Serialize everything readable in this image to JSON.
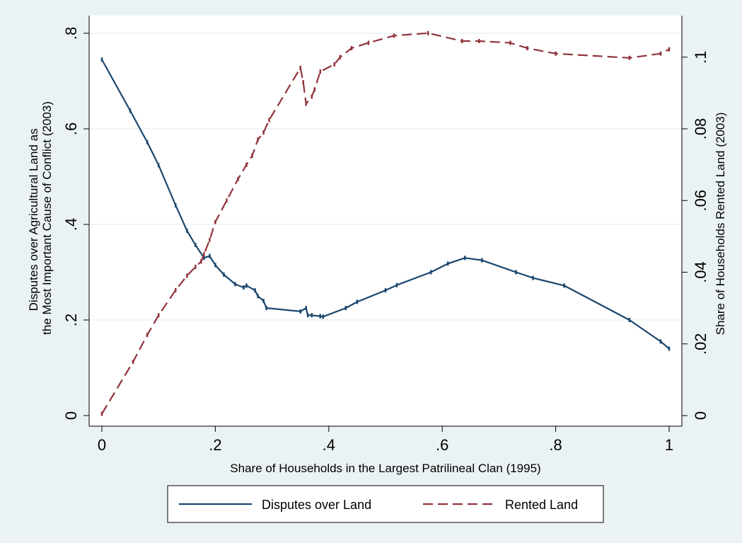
{
  "chart_data": {
    "type": "line",
    "xlabel": "Share of Households in the Largest Patrilineal Clan (1995)",
    "ylabel_left": [
      "Disputes over Agricultural Land as",
      "the Most Important Cause of Conflict (2003)"
    ],
    "ylabel_right": "Share of Households Rented Land (2003)",
    "xlim": [
      0,
      1
    ],
    "ylim_left": [
      0,
      0.8
    ],
    "ylim_right": [
      0,
      0.1066667
    ],
    "x_ticks": [
      0,
      0.2,
      0.4,
      0.6,
      0.8,
      1
    ],
    "x_tick_labels": [
      "0",
      ".2",
      ".4",
      ".6",
      ".8",
      "1"
    ],
    "y_left_ticks": [
      0,
      0.2,
      0.4,
      0.6,
      0.8
    ],
    "y_left_tick_labels": [
      "0",
      ".2",
      ".4",
      ".6",
      ".8"
    ],
    "y_right_ticks": [
      0,
      0.02,
      0.04,
      0.06,
      0.08,
      0.1
    ],
    "y_right_tick_labels": [
      "0",
      ".02",
      ".04",
      ".06",
      ".08",
      ".1"
    ],
    "grid": "horizontal",
    "legend_position": "bottom",
    "series": [
      {
        "name": "Disputes over Land",
        "axis": "left",
        "color": "#1a476f",
        "dash": "solid",
        "points": [
          [
            0.0,
            0.745
          ],
          [
            0.05,
            0.638
          ],
          [
            0.08,
            0.572
          ],
          [
            0.1,
            0.524
          ],
          [
            0.13,
            0.44
          ],
          [
            0.15,
            0.387
          ],
          [
            0.165,
            0.357
          ],
          [
            0.18,
            0.33
          ],
          [
            0.19,
            0.334
          ],
          [
            0.2,
            0.315
          ],
          [
            0.215,
            0.295
          ],
          [
            0.235,
            0.275
          ],
          [
            0.25,
            0.268
          ],
          [
            0.255,
            0.272
          ],
          [
            0.27,
            0.262
          ],
          [
            0.275,
            0.25
          ],
          [
            0.285,
            0.24
          ],
          [
            0.29,
            0.225
          ],
          [
            0.35,
            0.218
          ],
          [
            0.36,
            0.225
          ],
          [
            0.363,
            0.21
          ],
          [
            0.37,
            0.21
          ],
          [
            0.385,
            0.208
          ],
          [
            0.39,
            0.207
          ],
          [
            0.43,
            0.225
          ],
          [
            0.45,
            0.238
          ],
          [
            0.5,
            0.262
          ],
          [
            0.52,
            0.273
          ],
          [
            0.58,
            0.3
          ],
          [
            0.61,
            0.318
          ],
          [
            0.64,
            0.33
          ],
          [
            0.67,
            0.325
          ],
          [
            0.73,
            0.3
          ],
          [
            0.76,
            0.288
          ],
          [
            0.815,
            0.272
          ],
          [
            0.93,
            0.2
          ],
          [
            0.985,
            0.155
          ],
          [
            1.0,
            0.14
          ]
        ]
      },
      {
        "name": "Rented Land",
        "axis": "right",
        "color": "#90353b",
        "dash": "dashed",
        "points": [
          [
            0.0,
            0.0005
          ],
          [
            0.055,
            0.015
          ],
          [
            0.08,
            0.0225
          ],
          [
            0.1,
            0.028
          ],
          [
            0.13,
            0.035
          ],
          [
            0.15,
            0.039
          ],
          [
            0.165,
            0.0415
          ],
          [
            0.175,
            0.043
          ],
          [
            0.18,
            0.045
          ],
          [
            0.19,
            0.049
          ],
          [
            0.2,
            0.054
          ],
          [
            0.22,
            0.06
          ],
          [
            0.24,
            0.066
          ],
          [
            0.255,
            0.07
          ],
          [
            0.265,
            0.0725
          ],
          [
            0.275,
            0.077
          ],
          [
            0.285,
            0.079
          ],
          [
            0.295,
            0.0825
          ],
          [
            0.35,
            0.097
          ],
          [
            0.355,
            0.093
          ],
          [
            0.36,
            0.087
          ],
          [
            0.37,
            0.089
          ],
          [
            0.375,
            0.091
          ],
          [
            0.385,
            0.096
          ],
          [
            0.41,
            0.098
          ],
          [
            0.42,
            0.1
          ],
          [
            0.44,
            0.1025
          ],
          [
            0.47,
            0.104
          ],
          [
            0.515,
            0.106
          ],
          [
            0.575,
            0.1067
          ],
          [
            0.635,
            0.1045
          ],
          [
            0.665,
            0.1045
          ],
          [
            0.72,
            0.104
          ],
          [
            0.75,
            0.1025
          ],
          [
            0.8,
            0.101
          ],
          [
            0.93,
            0.0998
          ],
          [
            0.985,
            0.101
          ],
          [
            1.0,
            0.1022
          ]
        ]
      }
    ]
  }
}
